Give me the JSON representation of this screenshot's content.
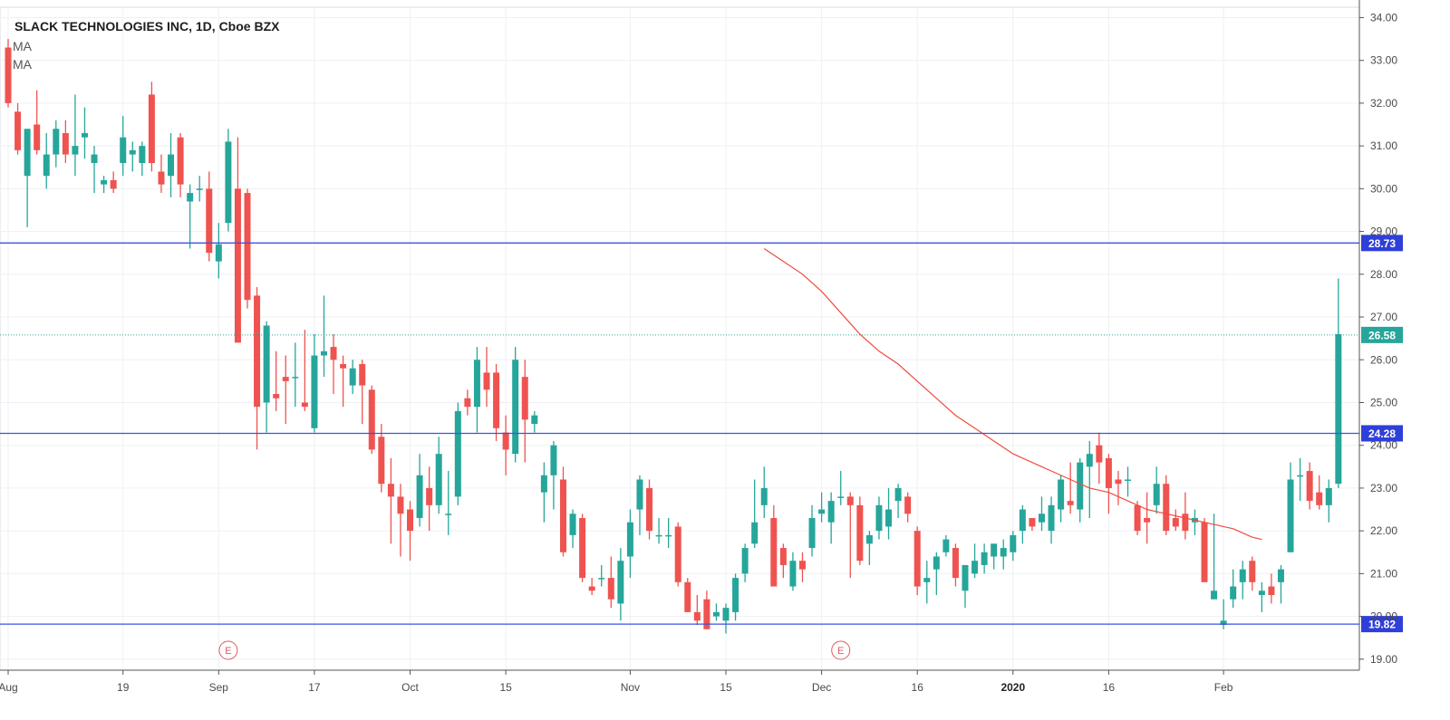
{
  "header": {
    "title": "SLACK TECHNOLOGIES INC, 1D, Cboe BZX",
    "indicators": [
      "MA",
      "MA"
    ]
  },
  "colors": {
    "up": "#26a69a",
    "down": "#ef5350",
    "level_line": "#3f51e0",
    "level_tag_bg": "#2f3fd9",
    "last_price_tag_bg": "#26a69a",
    "ma_line": "#ef4b3f",
    "grid": "#eef0f3"
  },
  "chart_data": {
    "type": "candlestick",
    "y_axis_ticks": [
      "19.00",
      "20.00",
      "21.00",
      "22.00",
      "23.00",
      "24.00",
      "25.00",
      "26.00",
      "27.00",
      "28.00",
      "29.00",
      "30.00",
      "31.00",
      "32.00",
      "33.00",
      "34.00"
    ],
    "ylim": [
      18.7,
      34.2
    ],
    "x_axis_labels": [
      {
        "label": "Aug",
        "index": 0
      },
      {
        "label": "19",
        "index": 12
      },
      {
        "label": "Sep",
        "index": 22
      },
      {
        "label": "17",
        "index": 32
      },
      {
        "label": "Oct",
        "index": 42
      },
      {
        "label": "15",
        "index": 52
      },
      {
        "label": "Nov",
        "index": 65
      },
      {
        "label": "15",
        "index": 75
      },
      {
        "label": "Dec",
        "index": 85
      },
      {
        "label": "16",
        "index": 95
      },
      {
        "label": "2020",
        "index": 105,
        "bold": true
      },
      {
        "label": "16",
        "index": 115
      },
      {
        "label": "Feb",
        "index": 127
      }
    ],
    "levels": [
      28.73,
      24.28,
      19.82
    ],
    "last_price": 26.58,
    "events": [
      {
        "label": "E",
        "index": 23
      },
      {
        "label": "E",
        "index": 87
      }
    ],
    "ohlc": [
      [
        33.3,
        33.5,
        31.9,
        32.0
      ],
      [
        31.8,
        32.0,
        30.8,
        30.9
      ],
      [
        30.3,
        31.4,
        29.1,
        31.4
      ],
      [
        31.5,
        32.3,
        30.8,
        30.9
      ],
      [
        30.3,
        31.3,
        30.0,
        30.8
      ],
      [
        30.8,
        31.6,
        30.5,
        31.4
      ],
      [
        31.3,
        31.6,
        30.6,
        30.8
      ],
      [
        30.8,
        32.2,
        30.3,
        31.0
      ],
      [
        31.2,
        31.9,
        30.7,
        31.3
      ],
      [
        30.6,
        31.0,
        29.9,
        30.8
      ],
      [
        30.1,
        30.3,
        29.9,
        30.2
      ],
      [
        30.2,
        30.4,
        29.9,
        30.0
      ],
      [
        30.6,
        31.7,
        30.3,
        31.2
      ],
      [
        30.8,
        31.1,
        30.4,
        30.9
      ],
      [
        30.6,
        31.1,
        30.3,
        31.0
      ],
      [
        32.2,
        32.5,
        30.4,
        30.6
      ],
      [
        30.4,
        30.8,
        29.9,
        30.1
      ],
      [
        30.3,
        31.3,
        29.8,
        30.8
      ],
      [
        31.2,
        31.3,
        29.8,
        30.1
      ],
      [
        29.7,
        30.1,
        28.6,
        29.9
      ],
      [
        30.0,
        30.3,
        29.7,
        30.0
      ],
      [
        30.0,
        30.4,
        28.3,
        28.5
      ],
      [
        28.3,
        29.2,
        27.9,
        28.7
      ],
      [
        29.2,
        31.4,
        29.0,
        31.1
      ],
      [
        30.0,
        31.2,
        26.5,
        26.4
      ],
      [
        29.9,
        30.0,
        27.2,
        27.4
      ],
      [
        27.5,
        27.7,
        23.9,
        24.9
      ],
      [
        25.0,
        26.9,
        24.3,
        26.8
      ],
      [
        25.2,
        26.2,
        24.8,
        25.1
      ],
      [
        25.6,
        26.1,
        24.5,
        25.5
      ],
      [
        25.6,
        26.4,
        24.9,
        25.6
      ],
      [
        25.0,
        26.7,
        24.8,
        24.9
      ],
      [
        24.4,
        26.6,
        24.3,
        26.1
      ],
      [
        26.1,
        27.5,
        25.6,
        26.2
      ],
      [
        26.3,
        26.6,
        25.2,
        26.0
      ],
      [
        25.9,
        26.1,
        24.9,
        25.8
      ],
      [
        25.4,
        26.0,
        25.2,
        25.8
      ],
      [
        25.9,
        26.0,
        24.5,
        25.4
      ],
      [
        25.3,
        25.4,
        23.8,
        23.9
      ],
      [
        24.2,
        24.5,
        22.9,
        23.1
      ],
      [
        23.1,
        23.7,
        21.7,
        22.8
      ],
      [
        22.8,
        23.1,
        21.4,
        22.4
      ],
      [
        22.5,
        22.7,
        21.3,
        22.0
      ],
      [
        22.3,
        23.8,
        22.1,
        23.3
      ],
      [
        23.0,
        23.5,
        22.0,
        22.6
      ],
      [
        22.6,
        24.2,
        22.4,
        23.8
      ],
      [
        22.4,
        23.4,
        21.9,
        22.4
      ],
      [
        22.8,
        25.0,
        22.6,
        24.8
      ],
      [
        25.1,
        25.3,
        24.7,
        24.9
      ],
      [
        24.9,
        26.3,
        24.3,
        26.0
      ],
      [
        25.7,
        26.3,
        24.9,
        25.3
      ],
      [
        25.7,
        25.9,
        24.1,
        24.4
      ],
      [
        24.3,
        24.7,
        23.3,
        23.9
      ],
      [
        23.8,
        26.3,
        23.6,
        26.0
      ],
      [
        25.6,
        26.0,
        23.6,
        24.6
      ],
      [
        24.5,
        24.8,
        24.3,
        24.7
      ],
      [
        22.9,
        23.6,
        22.2,
        23.3
      ],
      [
        23.3,
        24.1,
        22.5,
        24.0
      ],
      [
        23.2,
        23.5,
        21.4,
        21.5
      ],
      [
        21.9,
        22.5,
        21.6,
        22.4
      ],
      [
        22.3,
        22.4,
        20.8,
        20.9
      ],
      [
        20.7,
        20.9,
        20.5,
        20.6
      ],
      [
        20.9,
        21.2,
        20.7,
        20.9
      ],
      [
        20.9,
        21.4,
        20.2,
        20.4
      ],
      [
        20.3,
        21.6,
        19.9,
        21.3
      ],
      [
        21.4,
        22.5,
        20.9,
        22.2
      ],
      [
        22.5,
        23.3,
        21.9,
        23.2
      ],
      [
        23.0,
        23.2,
        21.8,
        22.0
      ],
      [
        21.9,
        22.3,
        21.7,
        21.9
      ],
      [
        21.9,
        22.3,
        21.6,
        21.9
      ],
      [
        22.1,
        22.2,
        20.7,
        20.8
      ],
      [
        20.8,
        20.9,
        20.1,
        20.1
      ],
      [
        20.1,
        20.5,
        19.8,
        19.9
      ],
      [
        20.4,
        20.6,
        19.7,
        19.7
      ],
      [
        20.0,
        20.3,
        19.9,
        20.1
      ],
      [
        19.9,
        20.3,
        19.6,
        20.2
      ],
      [
        20.1,
        21.0,
        19.9,
        20.9
      ],
      [
        21.0,
        21.7,
        20.8,
        21.6
      ],
      [
        21.7,
        23.2,
        21.6,
        22.2
      ],
      [
        22.6,
        23.5,
        22.3,
        23.0
      ],
      [
        22.3,
        22.6,
        20.7,
        20.7
      ],
      [
        21.6,
        21.7,
        20.9,
        21.2
      ],
      [
        20.7,
        21.5,
        20.6,
        21.3
      ],
      [
        21.3,
        21.5,
        20.8,
        21.1
      ],
      [
        21.6,
        22.6,
        21.4,
        22.3
      ],
      [
        22.4,
        22.9,
        22.2,
        22.5
      ],
      [
        22.2,
        22.9,
        21.7,
        22.7
      ],
      [
        22.8,
        23.4,
        22.6,
        22.8
      ],
      [
        22.8,
        22.9,
        20.9,
        22.6
      ],
      [
        22.6,
        22.8,
        21.2,
        21.3
      ],
      [
        21.7,
        22.0,
        21.2,
        21.9
      ],
      [
        22.0,
        22.8,
        21.8,
        22.6
      ],
      [
        22.1,
        23.0,
        21.8,
        22.5
      ],
      [
        22.7,
        23.1,
        22.3,
        23.0
      ],
      [
        22.8,
        22.9,
        22.2,
        22.4
      ],
      [
        22.0,
        22.1,
        20.5,
        20.7
      ],
      [
        20.8,
        21.3,
        20.3,
        20.9
      ],
      [
        21.1,
        21.5,
        20.5,
        21.4
      ],
      [
        21.5,
        21.9,
        21.4,
        21.8
      ],
      [
        21.6,
        21.7,
        20.7,
        20.9
      ],
      [
        20.6,
        21.2,
        20.2,
        21.2
      ],
      [
        21.0,
        21.7,
        20.9,
        21.3
      ],
      [
        21.2,
        21.7,
        21.0,
        21.5
      ],
      [
        21.4,
        21.7,
        21.1,
        21.7
      ],
      [
        21.4,
        21.8,
        21.1,
        21.6
      ],
      [
        21.5,
        22.0,
        21.3,
        21.9
      ],
      [
        22.0,
        22.6,
        21.7,
        22.5
      ],
      [
        22.3,
        22.3,
        22.0,
        22.1
      ],
      [
        22.2,
        22.8,
        22.0,
        22.4
      ],
      [
        22.0,
        22.8,
        21.7,
        22.6
      ],
      [
        22.5,
        23.3,
        22.2,
        23.2
      ],
      [
        22.7,
        23.6,
        22.4,
        22.6
      ],
      [
        22.5,
        23.7,
        22.2,
        23.6
      ],
      [
        23.5,
        24.1,
        22.3,
        23.8
      ],
      [
        24.0,
        24.3,
        23.1,
        23.6
      ],
      [
        23.7,
        23.8,
        22.4,
        23.0
      ],
      [
        23.2,
        23.4,
        22.6,
        23.1
      ],
      [
        23.2,
        23.5,
        22.8,
        23.2
      ],
      [
        22.6,
        22.7,
        21.9,
        22.0
      ],
      [
        22.3,
        22.9,
        21.7,
        22.2
      ],
      [
        22.6,
        23.5,
        22.4,
        23.1
      ],
      [
        23.1,
        23.3,
        21.9,
        22.0
      ],
      [
        22.3,
        22.5,
        22.0,
        22.1
      ],
      [
        22.4,
        22.9,
        21.8,
        22.0
      ],
      [
        22.2,
        22.5,
        21.9,
        22.3
      ],
      [
        22.2,
        22.3,
        20.9,
        20.8
      ],
      [
        20.4,
        22.4,
        20.5,
        20.6
      ],
      [
        19.8,
        20.4,
        19.7,
        19.9
      ],
      [
        20.4,
        21.1,
        20.2,
        20.7
      ],
      [
        20.8,
        21.3,
        20.4,
        21.1
      ],
      [
        21.3,
        21.4,
        20.6,
        20.8
      ],
      [
        20.5,
        20.8,
        20.1,
        20.6
      ],
      [
        20.7,
        21.0,
        20.3,
        20.5
      ],
      [
        20.8,
        21.2,
        20.3,
        21.1
      ],
      [
        21.5,
        23.6,
        21.5,
        23.2
      ],
      [
        23.3,
        23.7,
        22.7,
        23.3
      ],
      [
        23.4,
        23.6,
        22.5,
        22.7
      ],
      [
        22.9,
        23.3,
        22.5,
        22.6
      ],
      [
        22.6,
        23.2,
        22.2,
        23.0
      ],
      [
        23.1,
        27.9,
        23.0,
        26.6
      ]
    ],
    "ma_values": [
      [
        79,
        28.6
      ],
      [
        81,
        28.3
      ],
      [
        83,
        28.0
      ],
      [
        85,
        27.6
      ],
      [
        87,
        27.1
      ],
      [
        89,
        26.6
      ],
      [
        91,
        26.2
      ],
      [
        93,
        25.9
      ],
      [
        95,
        25.5
      ],
      [
        97,
        25.1
      ],
      [
        99,
        24.7
      ],
      [
        101,
        24.4
      ],
      [
        103,
        24.1
      ],
      [
        105,
        23.8
      ],
      [
        107,
        23.6
      ],
      [
        109,
        23.4
      ],
      [
        111,
        23.2
      ],
      [
        113,
        23.0
      ],
      [
        115,
        22.9
      ],
      [
        117,
        22.7
      ],
      [
        119,
        22.5
      ],
      [
        121,
        22.4
      ],
      [
        123,
        22.3
      ],
      [
        125,
        22.2
      ],
      [
        127,
        22.1
      ],
      [
        128,
        22.05
      ],
      [
        130,
        21.85
      ],
      [
        131,
        21.8
      ]
    ]
  }
}
